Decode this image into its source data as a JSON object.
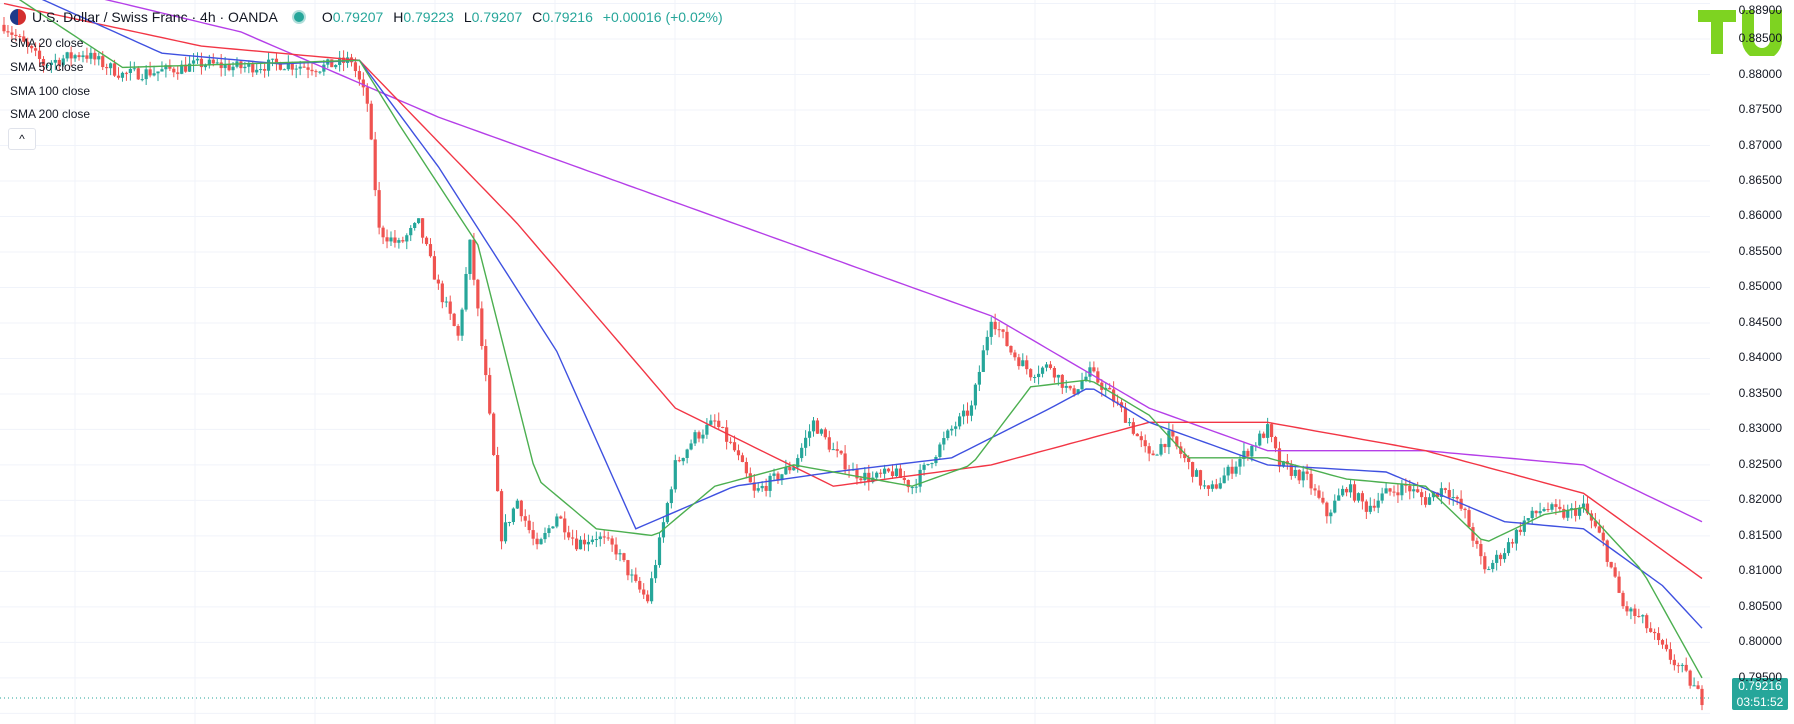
{
  "header": {
    "symbol": "U.S. Dollar / Swiss Franc · 4h · OANDA",
    "o_label": "O",
    "o_value": "0.79207",
    "h_label": "H",
    "h_value": "0.79223",
    "l_label": "L",
    "l_value": "0.79207",
    "c_label": "C",
    "c_value": "0.79216",
    "change": "+0.00016 (+0.02%)"
  },
  "indicators": [
    "SMA 20 close",
    "SMA 50 close",
    "SMA 100 close",
    "SMA 200 close"
  ],
  "collapse_icon": "^",
  "last_price": {
    "value": "0.79216",
    "countdown": "03:51:52"
  },
  "colors": {
    "up": "#26a69a",
    "down": "#ef5350",
    "sma20": "#4caf50",
    "sma50": "#3f51e0",
    "sma100": "#f23645",
    "sma200": "#b53fe8",
    "grid": "#f0f3fa",
    "logo": "#7ed321"
  },
  "chart_data": {
    "type": "candlestick",
    "title": "U.S. Dollar / Swiss Franc · 4h · OANDA",
    "ylim": [
      0.7885,
      0.8905
    ],
    "y_ticks": [
      "0.79500",
      "0.80000",
      "0.80500",
      "0.81000",
      "0.81500",
      "0.82000",
      "0.82500",
      "0.83000",
      "0.83500",
      "0.84000",
      "0.84500",
      "0.85000",
      "0.85500",
      "0.86000",
      "0.86500",
      "0.87000",
      "0.87500",
      "0.88000",
      "0.88500",
      "0.88900"
    ],
    "price_anchors": [
      [
        0,
        0.887
      ],
      [
        10,
        0.8815
      ],
      [
        20,
        0.883
      ],
      [
        30,
        0.88
      ],
      [
        40,
        0.8805
      ],
      [
        50,
        0.8815
      ],
      [
        60,
        0.881
      ],
      [
        70,
        0.8815
      ],
      [
        80,
        0.881
      ],
      [
        88,
        0.882
      ],
      [
        92,
        0.876
      ],
      [
        95,
        0.858
      ],
      [
        100,
        0.856
      ],
      [
        105,
        0.859
      ],
      [
        110,
        0.85
      ],
      [
        115,
        0.843
      ],
      [
        118,
        0.856
      ],
      [
        122,
        0.837
      ],
      [
        126,
        0.815
      ],
      [
        130,
        0.82
      ],
      [
        135,
        0.813
      ],
      [
        140,
        0.818
      ],
      [
        145,
        0.814
      ],
      [
        150,
        0.815
      ],
      [
        155,
        0.813
      ],
      [
        160,
        0.808
      ],
      [
        163,
        0.806
      ],
      [
        166,
        0.814
      ],
      [
        170,
        0.825
      ],
      [
        175,
        0.829
      ],
      [
        180,
        0.831
      ],
      [
        185,
        0.827
      ],
      [
        190,
        0.821
      ],
      [
        195,
        0.823
      ],
      [
        200,
        0.825
      ],
      [
        205,
        0.831
      ],
      [
        210,
        0.827
      ],
      [
        215,
        0.824
      ],
      [
        220,
        0.823
      ],
      [
        225,
        0.824
      ],
      [
        230,
        0.822
      ],
      [
        235,
        0.826
      ],
      [
        240,
        0.83
      ],
      [
        245,
        0.833
      ],
      [
        250,
        0.846
      ],
      [
        255,
        0.841
      ],
      [
        260,
        0.838
      ],
      [
        265,
        0.839
      ],
      [
        270,
        0.835
      ],
      [
        275,
        0.838
      ],
      [
        280,
        0.835
      ],
      [
        285,
        0.831
      ],
      [
        290,
        0.826
      ],
      [
        295,
        0.829
      ],
      [
        300,
        0.825
      ],
      [
        305,
        0.821
      ],
      [
        310,
        0.824
      ],
      [
        315,
        0.827
      ],
      [
        320,
        0.83
      ],
      [
        323,
        0.825
      ],
      [
        330,
        0.823
      ],
      [
        335,
        0.818
      ],
      [
        340,
        0.822
      ],
      [
        345,
        0.819
      ],
      [
        350,
        0.821
      ],
      [
        355,
        0.822
      ],
      [
        360,
        0.82
      ],
      [
        365,
        0.822
      ],
      [
        370,
        0.818
      ],
      [
        375,
        0.81
      ],
      [
        380,
        0.813
      ],
      [
        385,
        0.817
      ],
      [
        390,
        0.819
      ],
      [
        395,
        0.818
      ],
      [
        400,
        0.819
      ],
      [
        405,
        0.814
      ],
      [
        410,
        0.805
      ],
      [
        415,
        0.803
      ],
      [
        420,
        0.799
      ],
      [
        425,
        0.796
      ],
      [
        430,
        0.792
      ]
    ],
    "sma200": [
      [
        0,
        0.894
      ],
      [
        60,
        0.886
      ],
      [
        110,
        0.874
      ],
      [
        150,
        0.866
      ],
      [
        210,
        0.854
      ],
      [
        250,
        0.846
      ],
      [
        290,
        0.833
      ],
      [
        320,
        0.827
      ],
      [
        360,
        0.827
      ],
      [
        400,
        0.825
      ],
      [
        430,
        0.817
      ]
    ],
    "sma100": [
      [
        0,
        0.89
      ],
      [
        50,
        0.884
      ],
      [
        90,
        0.882
      ],
      [
        130,
        0.859
      ],
      [
        170,
        0.833
      ],
      [
        210,
        0.822
      ],
      [
        250,
        0.825
      ],
      [
        290,
        0.831
      ],
      [
        320,
        0.831
      ],
      [
        360,
        0.827
      ],
      [
        400,
        0.821
      ],
      [
        430,
        0.809
      ]
    ],
    "sma50": [
      [
        0,
        0.893
      ],
      [
        40,
        0.883
      ],
      [
        70,
        0.8815
      ],
      [
        90,
        0.882
      ],
      [
        110,
        0.867
      ],
      [
        140,
        0.841
      ],
      [
        160,
        0.816
      ],
      [
        185,
        0.822
      ],
      [
        210,
        0.824
      ],
      [
        240,
        0.826
      ],
      [
        265,
        0.833
      ],
      [
        275,
        0.836
      ],
      [
        290,
        0.831
      ],
      [
        320,
        0.825
      ],
      [
        350,
        0.824
      ],
      [
        380,
        0.817
      ],
      [
        400,
        0.816
      ],
      [
        420,
        0.808
      ],
      [
        430,
        0.802
      ]
    ],
    "sma20": [
      [
        0,
        0.892
      ],
      [
        30,
        0.881
      ],
      [
        60,
        0.8815
      ],
      [
        90,
        0.882
      ],
      [
        100,
        0.873
      ],
      [
        120,
        0.856
      ],
      [
        135,
        0.823
      ],
      [
        150,
        0.816
      ],
      [
        165,
        0.815
      ],
      [
        180,
        0.822
      ],
      [
        200,
        0.825
      ],
      [
        230,
        0.822
      ],
      [
        245,
        0.825
      ],
      [
        260,
        0.836
      ],
      [
        275,
        0.837
      ],
      [
        290,
        0.832
      ],
      [
        300,
        0.826
      ],
      [
        320,
        0.826
      ],
      [
        340,
        0.823
      ],
      [
        360,
        0.822
      ],
      [
        375,
        0.814
      ],
      [
        390,
        0.818
      ],
      [
        400,
        0.819
      ],
      [
        415,
        0.81
      ],
      [
        430,
        0.795
      ]
    ]
  }
}
